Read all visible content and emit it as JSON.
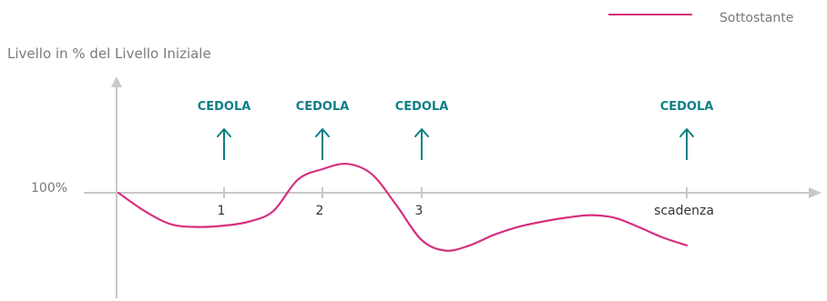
{
  "chart_data": {
    "type": "line",
    "ylabel": "Livello in % del Livello Iniziale",
    "y_reference_label": "100%",
    "x_ticks": [
      {
        "label": "1"
      },
      {
        "label": "2"
      },
      {
        "label": "3"
      },
      {
        "label": "scadenza"
      }
    ],
    "coupon_label": "CEDOLA",
    "series": [
      {
        "name": "Sottostante",
        "color": "#d6307f",
        "x": [
          0,
          0.25,
          0.5,
          0.75,
          1.0,
          1.25,
          1.5,
          1.75,
          2.0,
          2.25,
          2.5,
          2.75,
          3.0,
          3.25,
          3.5,
          3.75,
          4.0,
          4.25,
          4.5,
          4.75,
          5.0,
          5.25,
          5.5,
          5.75
        ],
        "y": [
          100,
          93,
          88,
          87,
          87.5,
          89,
          93,
          105,
          109,
          111,
          107,
          95,
          82,
          78,
          80,
          84,
          87,
          89,
          90.5,
          91.5,
          90.5,
          87,
          83,
          80
        ]
      }
    ],
    "ylim": [
      60,
      130
    ],
    "xlim": [
      0,
      7
    ],
    "grid": false,
    "legend_position": "top-right",
    "colors": {
      "axis": "#c8c8c8",
      "accent": "#0f7f86",
      "text": "#7a7a7a"
    }
  }
}
